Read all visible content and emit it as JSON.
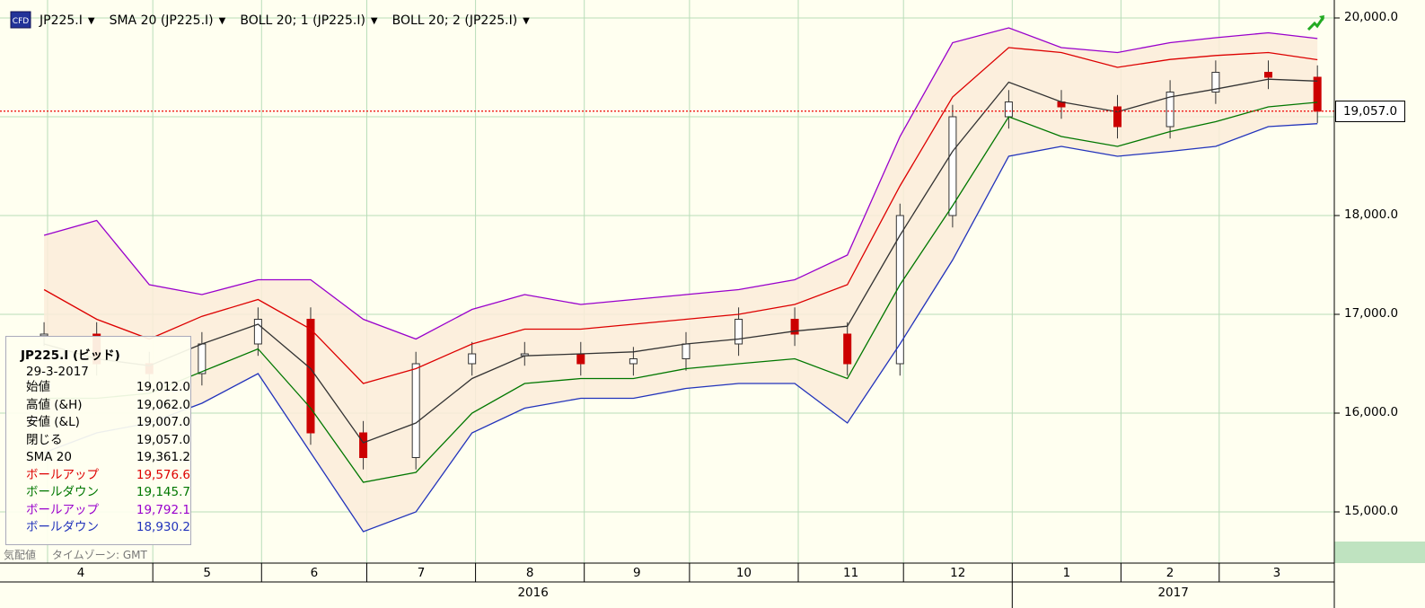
{
  "toolbar": {
    "items": [
      {
        "label": "JP225.I"
      },
      {
        "label": "SMA 20 (JP225.I)"
      },
      {
        "label": "BOLL 20; 1 (JP225.I)"
      },
      {
        "label": "BOLL 20; 2 (JP225.I)"
      }
    ],
    "caret": "▼",
    "icon": "cfd-icon",
    "trend_icon": "trend-up-icon"
  },
  "info_panel": {
    "title": "JP225.I (ビッド)",
    "date": "29-3-2017",
    "rows": [
      {
        "key": "始値",
        "value": "19,012.0",
        "color": "#000000"
      },
      {
        "key": "高値 (&H)",
        "value": "19,062.0",
        "color": "#000000"
      },
      {
        "key": "安値 (&L)",
        "value": "19,007.0",
        "color": "#000000"
      },
      {
        "key": "閉じる",
        "value": "19,057.0",
        "color": "#000000"
      },
      {
        "key": "SMA 20",
        "value": "19,361.2",
        "color": "#000000"
      },
      {
        "key": "ボールアップ",
        "value": "19,576.6",
        "color": "#dd0000"
      },
      {
        "key": "ボールダウン",
        "value": "19,145.7",
        "color": "#007700"
      },
      {
        "key": "ボールアップ",
        "value": "19,792.1",
        "color": "#9900cc"
      },
      {
        "key": "ボールダウン",
        "value": "18,930.2",
        "color": "#2233bb"
      }
    ]
  },
  "status": {
    "quote": "気配値",
    "timezone": "タイムゾーン: GMT"
  },
  "price_tag": "19,057.0",
  "colors": {
    "background": "#fffff0",
    "grid": "#b9ddb9",
    "sma": "#333333",
    "boll1_up": "#dd0000",
    "boll1_down": "#007700",
    "boll2_up": "#9900cc",
    "boll2_down": "#2233bb",
    "candle_up": "#333333",
    "candle_down": "#cc0000",
    "band_fill": "#fbecd9",
    "axis_band": "#bfe3c0"
  },
  "chart_data": {
    "type": "candlestick",
    "instrument": "JP225.I",
    "xlabels": [
      "4",
      "5",
      "6",
      "7",
      "8",
      "9",
      "10",
      "11",
      "12",
      "1",
      "2",
      "3"
    ],
    "years": [
      "2016",
      "2017"
    ],
    "y_ticks": [
      "15,000.0",
      "16,000.0",
      "17,000.0",
      "18,000.0",
      "19,000.0",
      "20,000.0"
    ],
    "ylim": [
      14650,
      20130
    ],
    "current_price": 19057,
    "dates": [
      "2016-03-31",
      "2016-04-15",
      "2016-04-30",
      "2016-05-15",
      "2016-05-31",
      "2016-06-15",
      "2016-06-30",
      "2016-07-15",
      "2016-07-31",
      "2016-08-15",
      "2016-08-31",
      "2016-09-15",
      "2016-09-30",
      "2016-10-15",
      "2016-10-31",
      "2016-11-15",
      "2016-11-30",
      "2016-12-15",
      "2016-12-31",
      "2017-01-15",
      "2017-01-31",
      "2017-02-15",
      "2017-02-28",
      "2017-03-15",
      "2017-03-29"
    ],
    "sma20": [
      16700,
      16550,
      16480,
      16700,
      16900,
      16450,
      15700,
      15900,
      16350,
      16580,
      16600,
      16620,
      16700,
      16750,
      16830,
      16880,
      17800,
      18650,
      19350,
      19150,
      19050,
      19200,
      19280,
      19380,
      19361
    ],
    "boll1_up": [
      17250,
      16950,
      16750,
      16980,
      17150,
      16850,
      16300,
      16450,
      16700,
      16850,
      16850,
      16900,
      16950,
      17000,
      17100,
      17300,
      18300,
      19200,
      19700,
      19650,
      19500,
      19580,
      19620,
      19650,
      19577
    ],
    "boll1_down": [
      16150,
      16150,
      16200,
      16420,
      16650,
      16050,
      15300,
      15400,
      16000,
      16300,
      16350,
      16350,
      16450,
      16500,
      16550,
      16350,
      17300,
      18100,
      19000,
      18800,
      18700,
      18850,
      18950,
      19100,
      19146
    ],
    "boll2_up": [
      17800,
      17950,
      17300,
      17200,
      17350,
      17350,
      16950,
      16750,
      17050,
      17200,
      17100,
      17150,
      17200,
      17250,
      17350,
      17600,
      18800,
      19750,
      19900,
      19700,
      19650,
      19750,
      19800,
      19850,
      19792
    ],
    "boll2_down": [
      15600,
      15800,
      15900,
      16100,
      16400,
      15600,
      14800,
      15000,
      15800,
      16050,
      16150,
      16150,
      16250,
      16300,
      16300,
      15900,
      16700,
      17550,
      18600,
      18700,
      18600,
      18650,
      18700,
      18900,
      18930
    ],
    "close": [
      16800,
      16500,
      16400,
      16700,
      16950,
      15800,
      15550,
      16500,
      16600,
      16600,
      16500,
      16550,
      16700,
      16950,
      16800,
      16500,
      18000,
      19000,
      19150,
      19100,
      18900,
      19250,
      19450,
      19400,
      19057
    ]
  }
}
